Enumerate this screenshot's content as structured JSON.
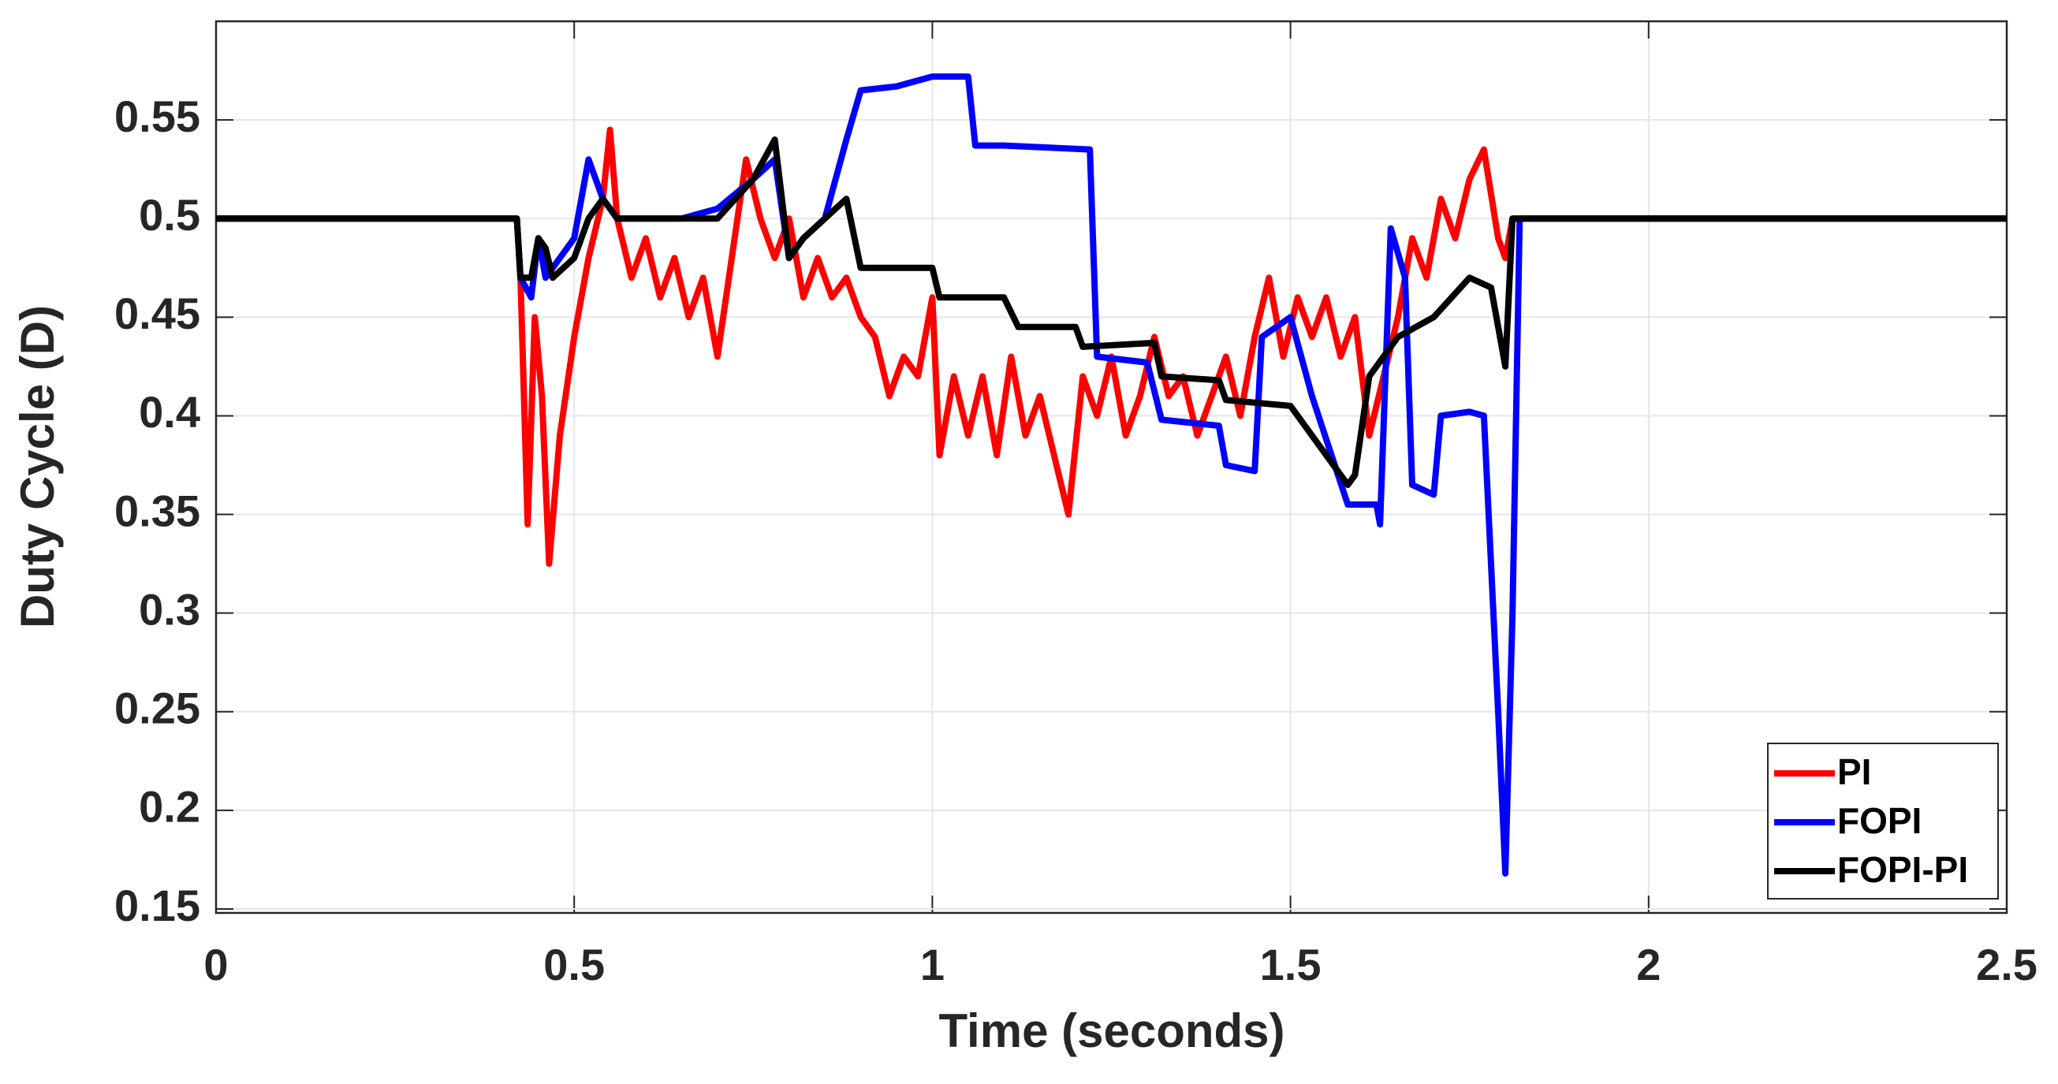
{
  "chart_data": {
    "type": "line",
    "x_label": "Time (seconds)",
    "y_label": "Duty Cycle (D)",
    "xlim": [
      0,
      2.5
    ],
    "ylim": [
      0.148,
      0.6
    ],
    "xticks": [
      0,
      0.5,
      1,
      1.5,
      2,
      2.5
    ],
    "yticks": [
      0.15,
      0.2,
      0.25,
      0.3,
      0.35,
      0.4,
      0.45,
      0.5,
      0.55
    ],
    "grid": true,
    "legend": "lower right",
    "series": [
      {
        "name": "PI",
        "color": "#ff0000",
        "x": [
          0,
          0.42,
          0.425,
          0.435,
          0.445,
          0.455,
          0.465,
          0.48,
          0.5,
          0.52,
          0.54,
          0.55,
          0.56,
          0.58,
          0.6,
          0.62,
          0.64,
          0.66,
          0.68,
          0.7,
          0.72,
          0.74,
          0.76,
          0.78,
          0.8,
          0.82,
          0.84,
          0.86,
          0.88,
          0.9,
          0.92,
          0.94,
          0.96,
          0.98,
          1.0,
          1.01,
          1.03,
          1.05,
          1.07,
          1.09,
          1.11,
          1.13,
          1.15,
          1.17,
          1.19,
          1.21,
          1.23,
          1.25,
          1.27,
          1.29,
          1.31,
          1.33,
          1.35,
          1.37,
          1.39,
          1.41,
          1.43,
          1.45,
          1.47,
          1.49,
          1.51,
          1.53,
          1.55,
          1.57,
          1.59,
          1.61,
          1.63,
          1.65,
          1.67,
          1.69,
          1.71,
          1.73,
          1.75,
          1.77,
          1.79,
          1.8,
          1.81,
          2.5
        ],
        "values": [
          0.5,
          0.5,
          0.47,
          0.345,
          0.45,
          0.41,
          0.325,
          0.39,
          0.44,
          0.48,
          0.51,
          0.545,
          0.5,
          0.47,
          0.49,
          0.46,
          0.48,
          0.45,
          0.47,
          0.43,
          0.48,
          0.53,
          0.5,
          0.48,
          0.5,
          0.46,
          0.48,
          0.46,
          0.47,
          0.45,
          0.44,
          0.41,
          0.43,
          0.42,
          0.46,
          0.38,
          0.42,
          0.39,
          0.42,
          0.38,
          0.43,
          0.39,
          0.41,
          0.38,
          0.35,
          0.42,
          0.4,
          0.43,
          0.39,
          0.41,
          0.44,
          0.41,
          0.42,
          0.39,
          0.41,
          0.43,
          0.4,
          0.44,
          0.47,
          0.43,
          0.46,
          0.44,
          0.46,
          0.43,
          0.45,
          0.39,
          0.42,
          0.45,
          0.49,
          0.47,
          0.51,
          0.49,
          0.52,
          0.535,
          0.49,
          0.48,
          0.5,
          0.5
        ]
      },
      {
        "name": "FOPI",
        "color": "#0000ff",
        "x": [
          0,
          0.42,
          0.425,
          0.44,
          0.45,
          0.46,
          0.5,
          0.52,
          0.54,
          0.56,
          0.6,
          0.65,
          0.7,
          0.75,
          0.78,
          0.8,
          0.82,
          0.85,
          0.88,
          0.9,
          0.95,
          1.0,
          1.05,
          1.06,
          1.1,
          1.22,
          1.23,
          1.3,
          1.32,
          1.4,
          1.41,
          1.45,
          1.46,
          1.5,
          1.53,
          1.58,
          1.62,
          1.625,
          1.64,
          1.66,
          1.67,
          1.7,
          1.71,
          1.75,
          1.77,
          1.79,
          1.8,
          1.81,
          1.82,
          2.5
        ],
        "values": [
          0.5,
          0.5,
          0.47,
          0.46,
          0.49,
          0.47,
          0.49,
          0.53,
          0.51,
          0.5,
          0.5,
          0.5,
          0.505,
          0.52,
          0.53,
          0.48,
          0.49,
          0.5,
          0.54,
          0.565,
          0.567,
          0.572,
          0.572,
          0.537,
          0.537,
          0.535,
          0.43,
          0.427,
          0.398,
          0.395,
          0.375,
          0.372,
          0.44,
          0.45,
          0.41,
          0.355,
          0.355,
          0.345,
          0.495,
          0.47,
          0.365,
          0.36,
          0.4,
          0.402,
          0.4,
          0.25,
          0.168,
          0.3,
          0.5,
          0.5
        ]
      },
      {
        "name": "FOPI-PI",
        "color": "#000000",
        "x": [
          0,
          0.42,
          0.425,
          0.44,
          0.45,
          0.46,
          0.47,
          0.5,
          0.52,
          0.54,
          0.56,
          0.6,
          0.65,
          0.7,
          0.75,
          0.78,
          0.8,
          0.82,
          0.85,
          0.88,
          0.9,
          0.96,
          1.0,
          1.01,
          1.1,
          1.12,
          1.2,
          1.21,
          1.31,
          1.32,
          1.4,
          1.41,
          1.5,
          1.58,
          1.59,
          1.61,
          1.65,
          1.7,
          1.75,
          1.78,
          1.8,
          1.81,
          2.5
        ],
        "values": [
          0.5,
          0.5,
          0.47,
          0.47,
          0.49,
          0.485,
          0.47,
          0.48,
          0.5,
          0.51,
          0.5,
          0.5,
          0.5,
          0.5,
          0.52,
          0.54,
          0.48,
          0.49,
          0.5,
          0.51,
          0.475,
          0.475,
          0.475,
          0.46,
          0.46,
          0.445,
          0.445,
          0.435,
          0.437,
          0.42,
          0.418,
          0.408,
          0.405,
          0.365,
          0.37,
          0.42,
          0.44,
          0.45,
          0.47,
          0.465,
          0.425,
          0.5,
          0.5
        ]
      }
    ]
  }
}
